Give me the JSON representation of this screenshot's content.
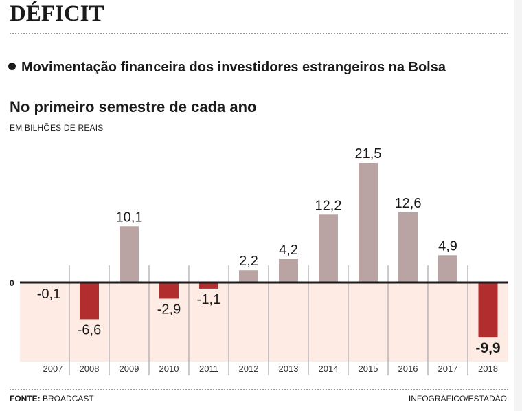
{
  "header": {
    "headline": "DÉFICIT",
    "subtitle": "Movimentação financeira dos investidores estrangeiros na Bolsa"
  },
  "footer": {
    "source_label": "FONTE:",
    "source_value": "BROADCAST",
    "credit": "INFOGRÁFICO/ESTADÃO"
  },
  "colors": {
    "positive_bar": "#b9a3a3",
    "negative_bar": "#b22e2e",
    "negative_zone": "#fdebe4",
    "zero_line": "#1a1a1a",
    "divider": "#a8a8a8"
  },
  "chart_data": {
    "type": "bar",
    "title": "No primeiro semestre de cada ano",
    "subtitle": "EM BILHÕES DE REAIS",
    "xlabel": "",
    "ylabel": "",
    "zero_label": "0",
    "categories": [
      "2007",
      "2008",
      "2009",
      "2010",
      "2011",
      "2012",
      "2013",
      "2014",
      "2015",
      "2016",
      "2017",
      "2018"
    ],
    "values": [
      -0.1,
      -6.6,
      10.1,
      -2.9,
      -1.1,
      2.2,
      4.2,
      12.2,
      21.5,
      12.6,
      4.9,
      -9.9
    ],
    "labels": [
      "-0,1",
      "-6,6",
      "10,1",
      "-2,9",
      "-1,1",
      "2,2",
      "4,2",
      "12,2",
      "21,5",
      "12,6",
      "4,9",
      "-9,9"
    ],
    "highlight_index": 11,
    "ylim": [
      -14,
      21.5
    ],
    "grid": false,
    "legend": "none"
  }
}
